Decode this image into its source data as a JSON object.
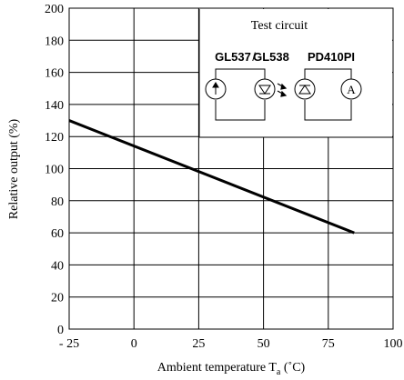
{
  "chart_data": {
    "type": "line",
    "xlabel_main": "Ambient temperature T",
    "xlabel_sub": "a",
    "xlabel_unit": " (˚C)",
    "ylabel": "Relative output (%)",
    "x_ticks": [
      "- 25",
      "0",
      "25",
      "50",
      "75",
      "100"
    ],
    "y_ticks": [
      "0",
      "20",
      "40",
      "60",
      "80",
      "100",
      "120",
      "140",
      "160",
      "180",
      "200"
    ],
    "xlim": [
      -25,
      100
    ],
    "ylim": [
      0,
      200
    ],
    "grid": true,
    "series": [
      {
        "x": [
          -25,
          85
        ],
        "y": [
          130,
          60
        ]
      }
    ],
    "inset": {
      "title": "Test circuit",
      "left_label": "GL537",
      "separator": "/",
      "left_label2": "GL538",
      "right_label": "PD410PI",
      "ammeter_label": "A"
    }
  }
}
